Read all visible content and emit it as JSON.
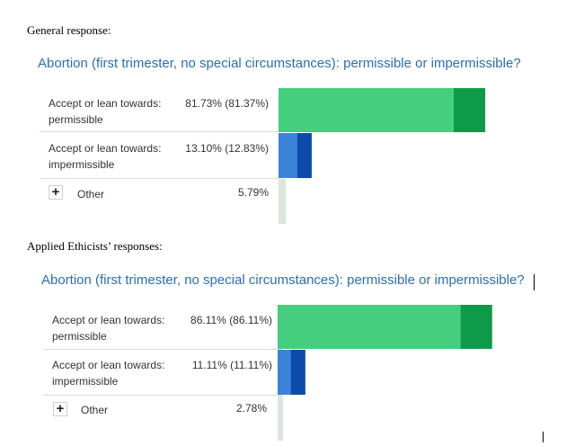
{
  "document": {
    "general_heading": "General response:",
    "applied_heading": "Applied Ethicists’ responses:"
  },
  "colors": {
    "permissible_light": "#44ce7d",
    "permissible_dark": "#0f9a4a",
    "impermissible_light": "#3b83d8",
    "impermissible_dark": "#0d4ba8",
    "other": "#dbe7db",
    "title": "#2a6fb4"
  },
  "icons": {
    "expand": "plus-icon"
  },
  "chart_data": [
    {
      "type": "bar",
      "group": "General response",
      "title": "Abortion (first trimester, no special circumstances): permissible or impermissible?",
      "categories": [
        "Accept or lean towards: permissible",
        "Accept or lean towards: impermissible",
        "Other"
      ],
      "label_lines": [
        [
          "Accept or lean towards:",
          "permissible"
        ],
        [
          "Accept or lean towards:",
          "impermissible"
        ],
        [
          "Other"
        ]
      ],
      "value_labels": [
        "81.73% (81.37%)",
        "13.10% (12.83%)",
        "5.79%"
      ],
      "values": [
        81.73,
        13.1,
        5.79
      ],
      "secondary_values": [
        81.37,
        12.83,
        null
      ],
      "xlim": [
        0,
        100
      ]
    },
    {
      "type": "bar",
      "group": "Applied Ethicists' responses",
      "title": "Abortion (first trimester, no special circumstances): permissible or impermissible?",
      "categories": [
        "Accept or lean towards: permissible",
        "Accept or lean towards: impermissible",
        "Other"
      ],
      "label_lines": [
        [
          "Accept or lean towards:",
          "permissible"
        ],
        [
          "Accept or lean towards:",
          "impermissible"
        ],
        [
          "Other"
        ]
      ],
      "value_labels": [
        "86.11% (86.11%)",
        "11.11% (11.11%)",
        "2.78%"
      ],
      "values": [
        86.11,
        11.11,
        2.78
      ],
      "secondary_values": [
        86.11,
        11.11,
        null
      ],
      "xlim": [
        0,
        100
      ]
    }
  ]
}
